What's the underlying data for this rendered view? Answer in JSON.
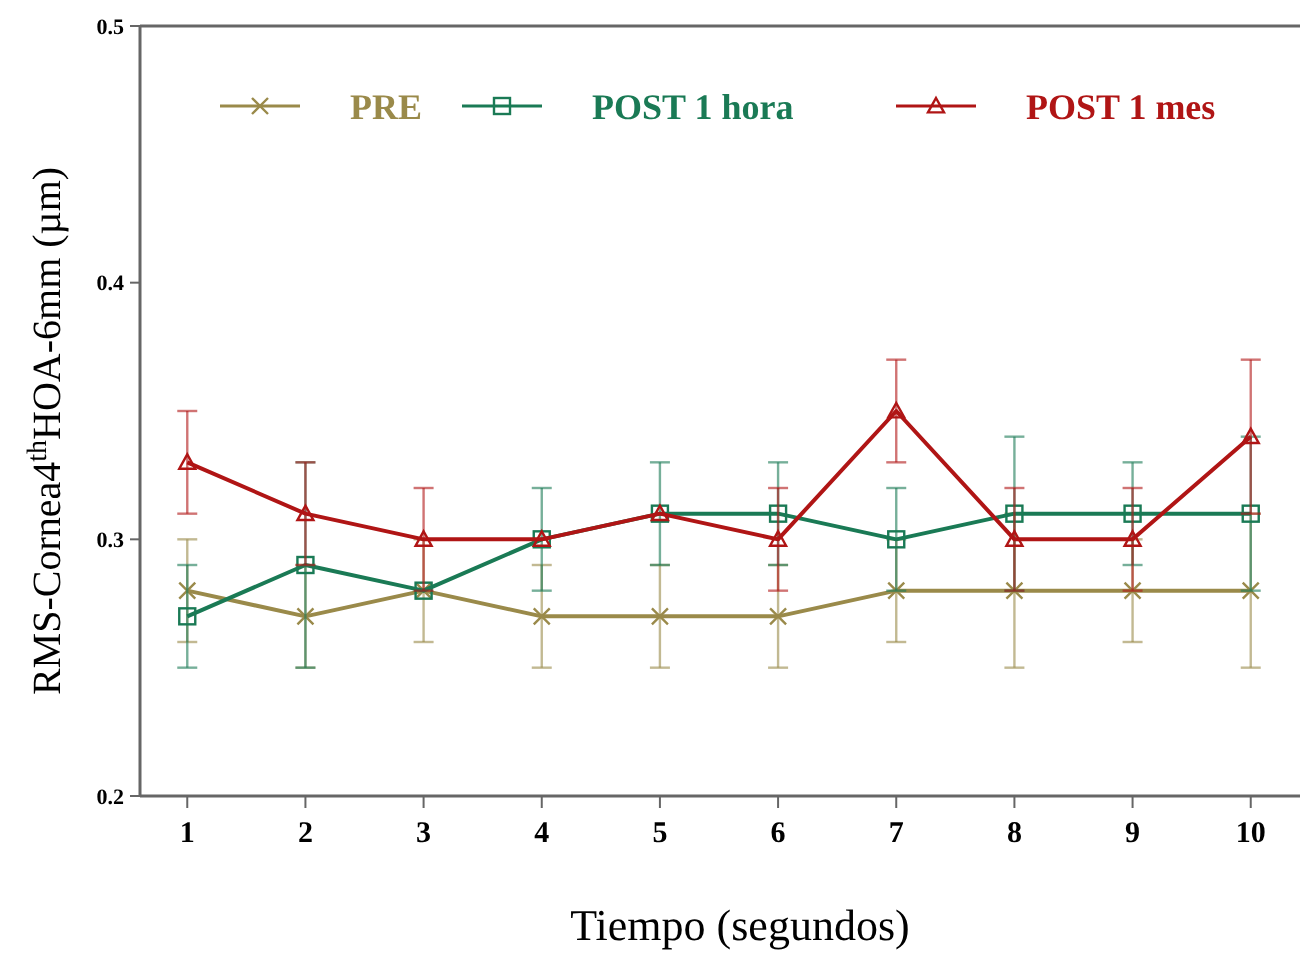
{
  "chart_data": {
    "type": "line",
    "xlabel": "Tiempo (segundos)",
    "ylabel": "RMS-Cornea4$^{th}$HOA-6mm (µm)",
    "x": [
      1,
      2,
      3,
      4,
      5,
      6,
      7,
      8,
      9,
      10
    ],
    "xlim": [
      0.6,
      10.4
    ],
    "xticks": [
      1,
      2,
      3,
      4,
      5,
      6,
      7,
      8,
      9,
      10
    ],
    "ylim": [
      0.2,
      0.5
    ],
    "yticks": [
      0.2,
      0.3,
      0.4,
      0.5
    ],
    "legend": "top",
    "grid": false,
    "line_style": "solid",
    "series": [
      {
        "name": "PRE",
        "color": "#9a8a4a",
        "marker": "cross",
        "values": [
          0.28,
          0.27,
          0.28,
          0.27,
          0.27,
          0.27,
          0.28,
          0.28,
          0.28,
          0.28
        ],
        "errors": [
          0.02,
          0.02,
          0.02,
          0.02,
          0.02,
          0.02,
          0.02,
          0.03,
          0.02,
          0.03
        ]
      },
      {
        "name": "POST 1 hora",
        "color": "#1a7a55",
        "marker": "square",
        "values": [
          0.27,
          0.29,
          0.28,
          0.3,
          0.31,
          0.31,
          0.3,
          0.31,
          0.31,
          0.31
        ],
        "errors": [
          0.02,
          0.04,
          null,
          0.02,
          0.02,
          0.02,
          0.02,
          0.03,
          0.02,
          0.03
        ]
      },
      {
        "name": "POST 1 mes",
        "color": "#b01515",
        "marker": "triangle",
        "values": [
          0.33,
          0.31,
          0.3,
          0.3,
          0.31,
          0.3,
          0.35,
          0.3,
          0.3,
          0.34
        ],
        "errors": [
          0.02,
          0.02,
          0.02,
          null,
          null,
          0.02,
          0.02,
          0.02,
          0.02,
          0.03
        ]
      }
    ]
  }
}
